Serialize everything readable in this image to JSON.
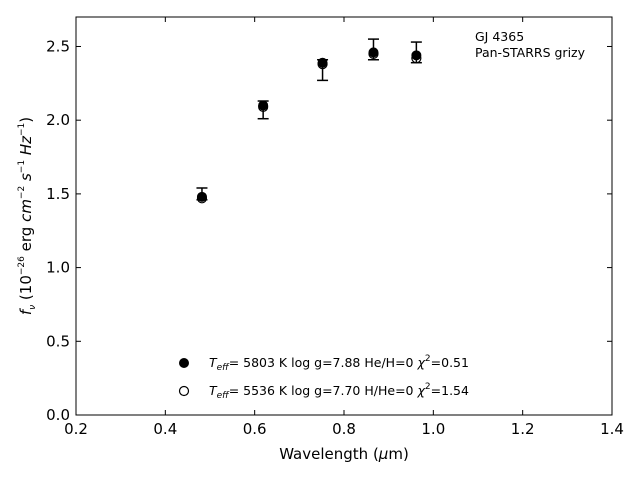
{
  "chart_data": {
    "type": "scatter",
    "title": "",
    "annotation": [
      "GJ 4365",
      "Pan-STARRS grizy"
    ],
    "xlabel": "Wavelength (μm)",
    "ylabel": "fν (10⁻²⁶ erg cm⁻² s⁻¹ Hz⁻¹)",
    "xlim": [
      0.2,
      1.4
    ],
    "ylim": [
      0.0,
      2.7
    ],
    "xticks": [
      "0.2",
      "0.4",
      "0.6",
      "0.8",
      "1.0",
      "1.2",
      "1.4"
    ],
    "yticks": [
      "0.0",
      "0.5",
      "1.0",
      "1.5",
      "2.0",
      "2.5"
    ],
    "grid": false,
    "legend_position": "bottom-center",
    "observed": {
      "x": [
        0.482,
        0.619,
        0.752,
        0.866,
        0.962
      ],
      "y": [
        1.5,
        2.07,
        2.34,
        2.48,
        2.46
      ],
      "err": [
        0.04,
        0.06,
        0.07,
        0.07,
        0.07
      ]
    },
    "series": [
      {
        "marker": "filled",
        "label": {
          "teff": "5803 K",
          "logg": "log g=7.88",
          "comp": "He/H=0",
          "chi2": "=0.51"
        },
        "x": [
          0.482,
          0.619,
          0.752,
          0.866,
          0.962
        ],
        "y": [
          1.48,
          2.1,
          2.39,
          2.46,
          2.44
        ]
      },
      {
        "marker": "open",
        "label": {
          "teff": "5536 K",
          "logg": "log g=7.70",
          "comp": "H/He=0",
          "chi2": "=1.54"
        },
        "x": [
          0.482,
          0.619,
          0.752,
          0.866,
          0.962
        ],
        "y": [
          1.47,
          2.09,
          2.38,
          2.45,
          2.42
        ]
      }
    ]
  }
}
